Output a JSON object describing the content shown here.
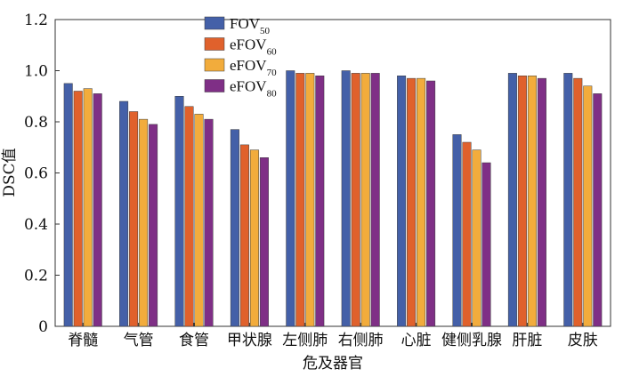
{
  "chart_data": {
    "type": "bar",
    "title": "",
    "xlabel": "危及器官",
    "ylabel": "DSC值",
    "ylim": [
      0,
      1.2
    ],
    "yticks": [
      "0",
      "0.2",
      "0.4",
      "0.6",
      "0.8",
      "1.0",
      "1.2"
    ],
    "grid": false,
    "legend_position": "top-left",
    "categories": [
      "脊髓",
      "气管",
      "食管",
      "甲状腺",
      "左侧肺",
      "右侧肺",
      "心脏",
      "健侧乳腺",
      "肝脏",
      "皮肤"
    ],
    "series": [
      {
        "name": "FOV",
        "subscript": "50",
        "color": "#4460a8",
        "values": [
          0.95,
          0.88,
          0.9,
          0.77,
          1.0,
          1.0,
          0.98,
          0.75,
          0.99,
          0.99
        ]
      },
      {
        "name": "eFOV",
        "subscript": "60",
        "color": "#e0612c",
        "values": [
          0.92,
          0.84,
          0.86,
          0.71,
          0.99,
          0.99,
          0.97,
          0.72,
          0.98,
          0.97
        ]
      },
      {
        "name": "eFOV",
        "subscript": "70",
        "color": "#f2ac3c",
        "values": [
          0.93,
          0.81,
          0.83,
          0.69,
          0.99,
          0.99,
          0.97,
          0.69,
          0.98,
          0.94
        ]
      },
      {
        "name": "eFOV",
        "subscript": "80",
        "color": "#7f2f86",
        "values": [
          0.91,
          0.79,
          0.81,
          0.66,
          0.98,
          0.99,
          0.96,
          0.64,
          0.97,
          0.91
        ]
      }
    ]
  }
}
